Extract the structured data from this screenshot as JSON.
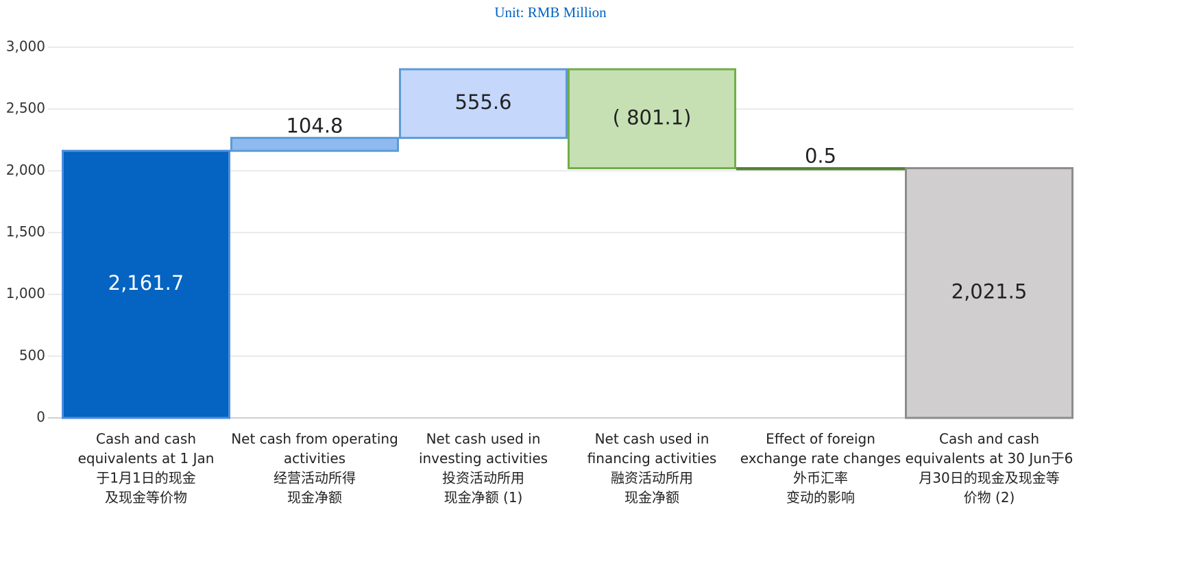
{
  "chart_data": {
    "type": "waterfall",
    "title": "Unit: RMB Million",
    "categories": [
      [
        "Cash and cash",
        "equivalents at 1 Jan",
        "于1月1日的现金",
        "及现金等价物"
      ],
      [
        "Net cash from operating",
        "activities",
        "经营活动所得",
        "现金净额"
      ],
      [
        "Net cash used in",
        "investing activities",
        "投资活动所用",
        "现金净额 (1)"
      ],
      [
        "Net cash used in",
        "financing activities",
        "融资活动所用",
        "现金净额"
      ],
      [
        "Effect of foreign",
        "exchange rate changes",
        "外币汇率",
        "变动的影响"
      ],
      [
        "Cash and cash",
        "equivalents at 30 Jun于6",
        "月30日的现金及现金等",
        "价物 (2)"
      ]
    ],
    "values": [
      2161.7,
      104.8,
      555.6,
      -801.1,
      0.5,
      2021.5
    ],
    "value_labels": [
      "2,161.7",
      "104.8",
      "555.6",
      "( 801.1)",
      "0.5",
      "2,021.5"
    ],
    "colors": [
      "#0563c1",
      "#8fbaf0",
      "#c5d7fb",
      "#c6e0b4",
      "#c6e0b4",
      "#d0cece"
    ],
    "border_colors": [
      "#4a8ee0",
      "#5b9bd5",
      "#5b9bd5",
      "#70ad47",
      "#548235",
      "#8c8c8c"
    ],
    "label_colors": [
      "#ffffff",
      "#222222",
      "#222222",
      "#222222",
      "#222222",
      "#222222"
    ],
    "ylim": [
      0,
      3000
    ],
    "yticks": [
      0,
      {
        "value": 500,
        "label": "500"
      },
      {
        "value": 1000,
        "label": "1,000"
      },
      {
        "value": 1500,
        "label": "1,500"
      },
      {
        "value": 2000,
        "label": "2,000"
      },
      {
        "value": 2500,
        "label": "2,500"
      },
      {
        "value": 3000,
        "label": "3,000"
      }
    ],
    "grid": true
  }
}
